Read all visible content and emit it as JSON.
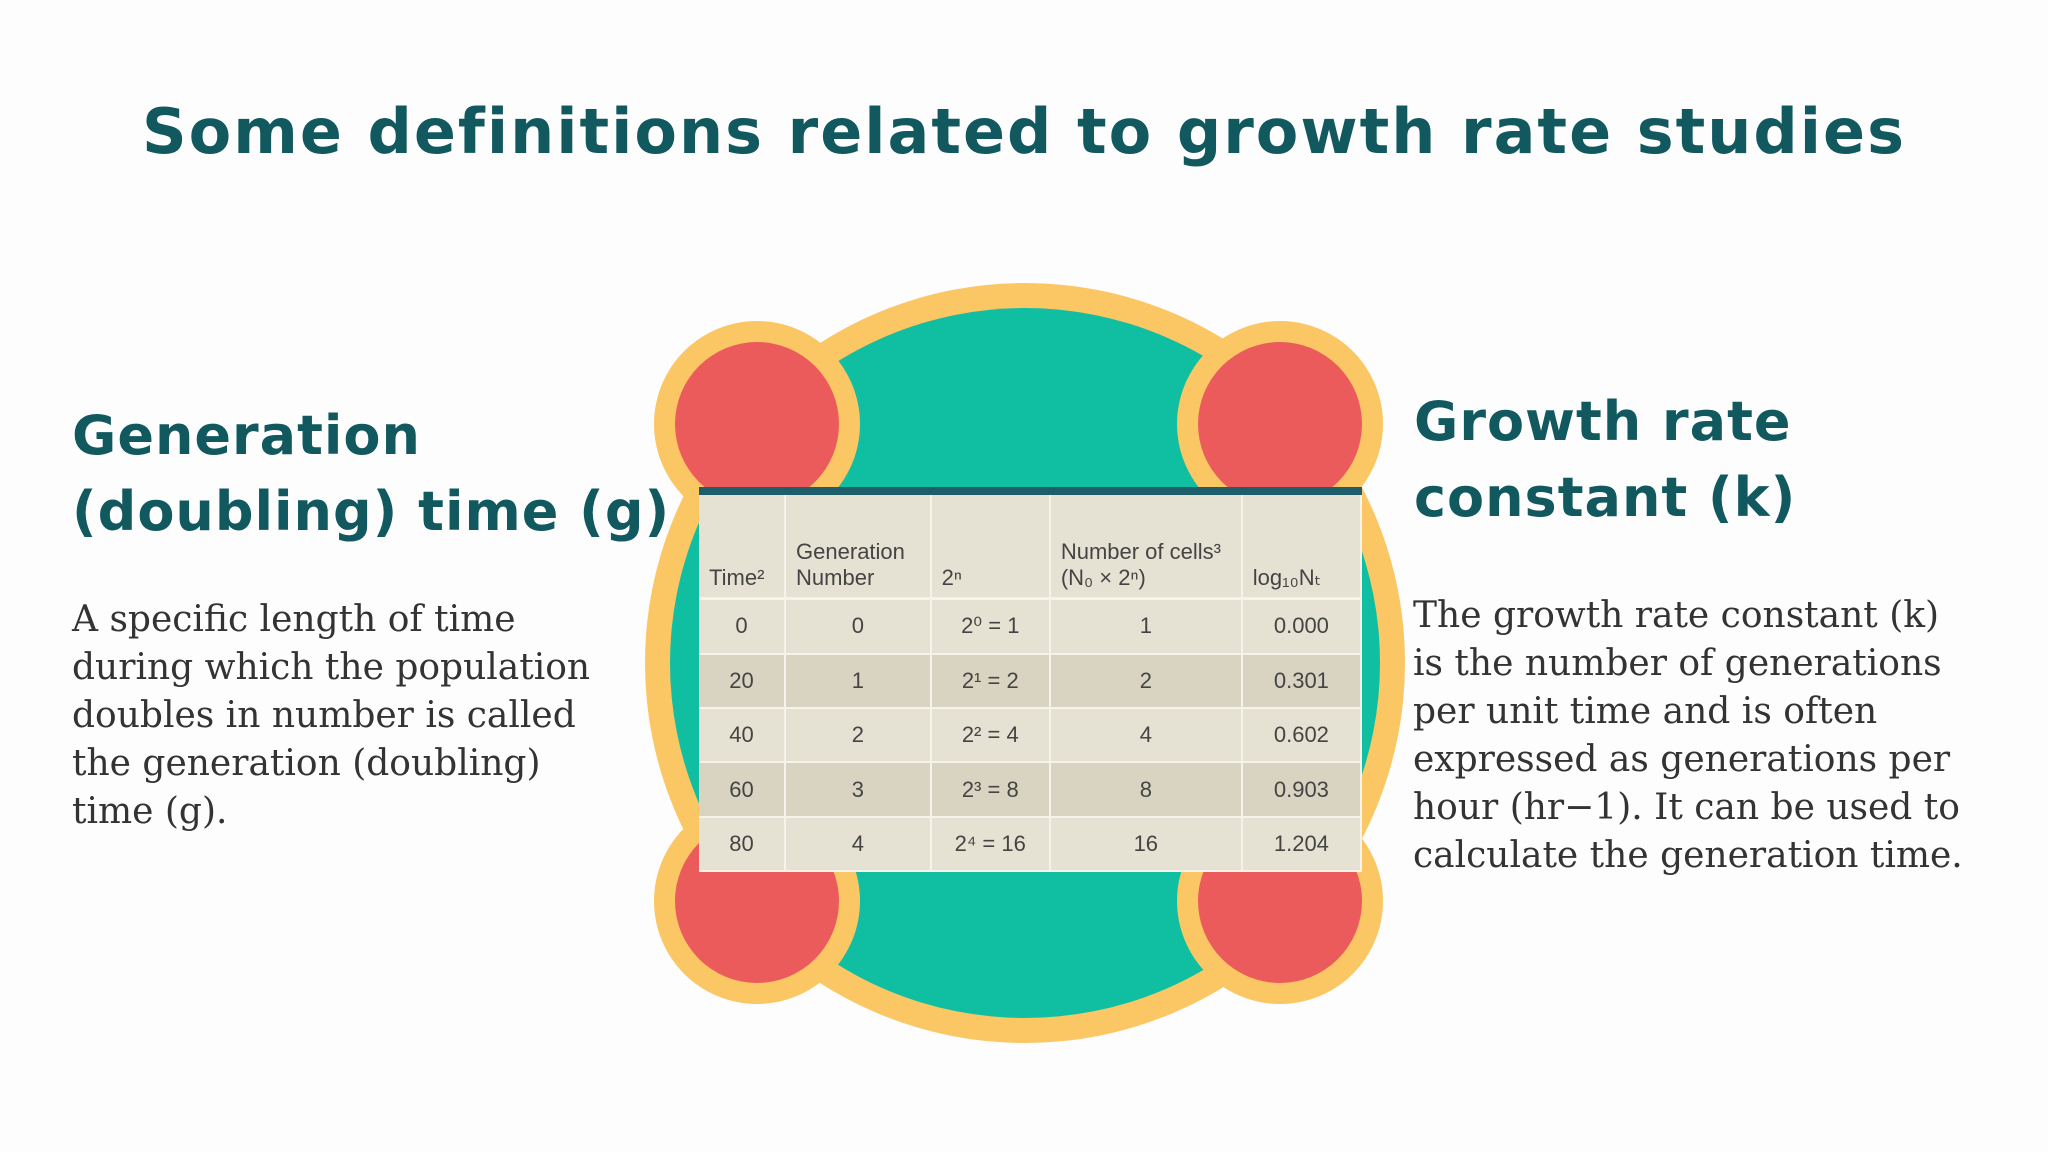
{
  "title": "Some definitions related to growth rate studies",
  "left": {
    "heading": "Generation (doubling) time (g)",
    "body": "A specific length of time during which the population doubles in number is called the generation (doubling) time (g)."
  },
  "right": {
    "heading": "Growth rate constant (k)",
    "body": "The growth rate constant (k) is the number of generations per unit time and is often expressed as generations per hour (hr−1). It can be used to calculate the generation time."
  },
  "table": {
    "header": [
      "Time²",
      "Generation Number",
      "2ⁿ",
      "Number of cells³ (N₀ × 2ⁿ)",
      "log₁₀Nₜ"
    ],
    "rows": [
      [
        "0",
        "0",
        "2⁰ = 1",
        "1",
        "0.000"
      ],
      [
        "20",
        "1",
        "2¹ = 2",
        "2",
        "0.301"
      ],
      [
        "40",
        "2",
        "2² = 4",
        "4",
        "0.602"
      ],
      [
        "60",
        "3",
        "2³ = 8",
        "8",
        "0.903"
      ],
      [
        "80",
        "4",
        "2⁴ = 16",
        "16",
        "1.204"
      ]
    ]
  }
}
